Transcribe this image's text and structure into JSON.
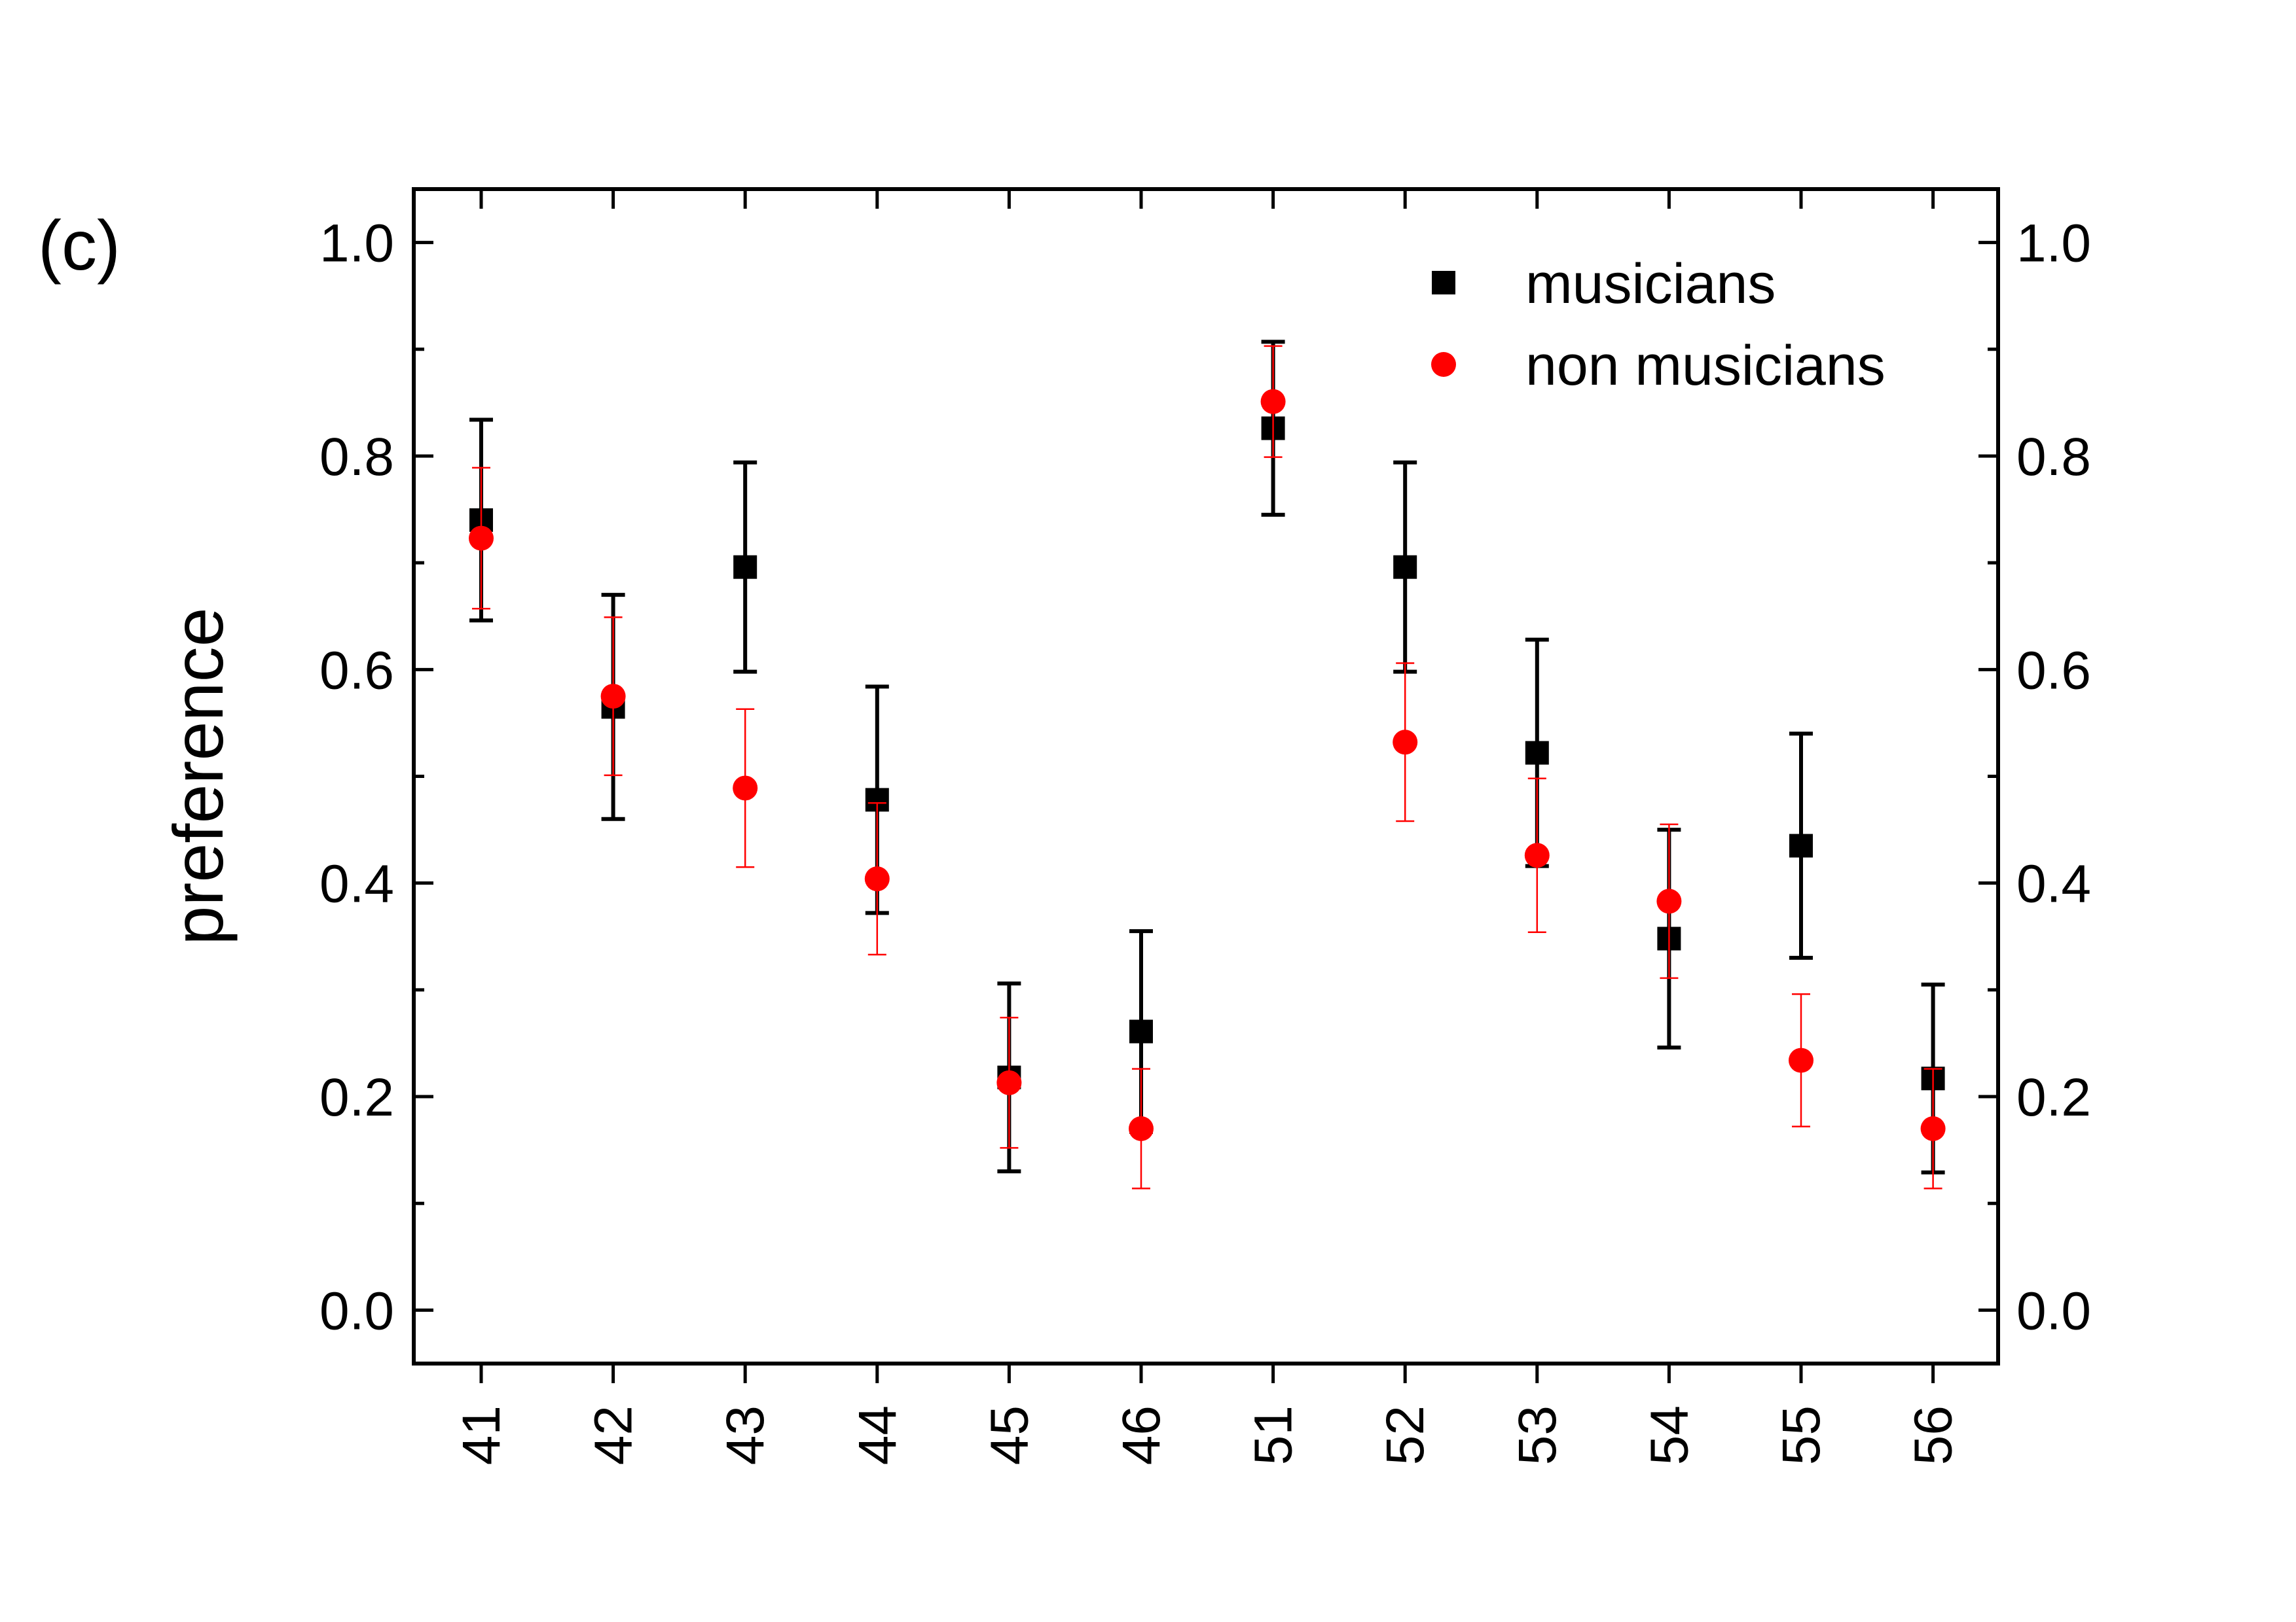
{
  "panel_label": "(c)",
  "chart_data": {
    "type": "scatter",
    "title": "",
    "xlabel": "",
    "ylabel": "preference",
    "categories": [
      "41",
      "42",
      "43",
      "44",
      "45",
      "46",
      "51",
      "52",
      "53",
      "54",
      "55",
      "56"
    ],
    "ylim": [
      -0.05,
      1.05
    ],
    "yticks": [
      "0.0",
      "0.2",
      "0.4",
      "0.6",
      "0.8",
      "1.0"
    ],
    "right_axis_mirrored": true,
    "legend_position": "top-right",
    "series": [
      {
        "name": "musicians",
        "marker": "square",
        "color": "#000000",
        "values": [
          0.74,
          0.565,
          0.696,
          0.478,
          0.218,
          0.261,
          0.826,
          0.696,
          0.522,
          0.348,
          0.435,
          0.217
        ],
        "errors": [
          0.094,
          0.105,
          0.098,
          0.106,
          0.088,
          0.094,
          0.081,
          0.098,
          0.106,
          0.102,
          0.105,
          0.088
        ]
      },
      {
        "name": "non musicians",
        "marker": "circle",
        "color": "#ff0000",
        "values": [
          0.723,
          0.575,
          0.489,
          0.404,
          0.213,
          0.17,
          0.851,
          0.532,
          0.426,
          0.383,
          0.234,
          0.17
        ],
        "errors": [
          0.066,
          0.074,
          0.074,
          0.071,
          0.061,
          0.056,
          0.052,
          0.074,
          0.072,
          0.072,
          0.062,
          0.056
        ]
      }
    ]
  }
}
